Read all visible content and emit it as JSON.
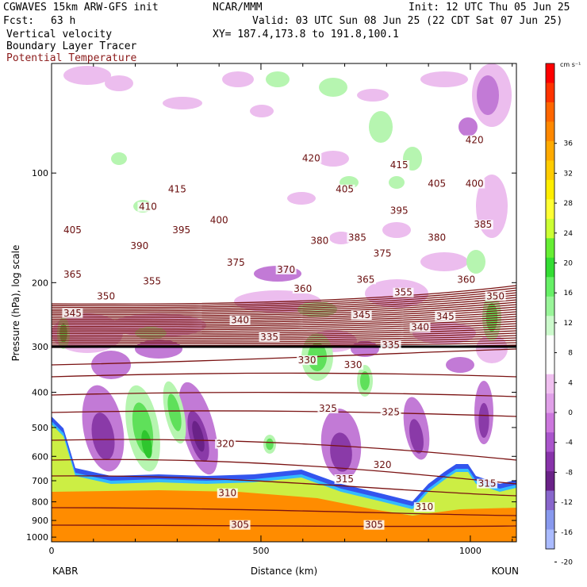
{
  "header": {
    "model": "CGWAVES 15km ARW-GFS init",
    "fcst_label": "Fcst:",
    "fcst_value": "63 h",
    "org": "NCAR/MMM",
    "init": "Init: 12 UTC Thu 05 Jun 25",
    "valid": "Valid: 03 UTC Sun 08 Jun 25 (22 CDT Sat 07 Jun 25)",
    "xy": "XY= 187.4,173.8 to 191.8,100.1",
    "field1": "Vertical velocity",
    "field2": "Boundary Layer Tracer",
    "field3": "Potential Temperature"
  },
  "chart_data": {
    "type": "heatmap",
    "title": "Vertical velocity / Boundary Layer Tracer / Potential Temperature cross-section",
    "xlabel": "Distance (km)",
    "ylabel": "Pressure (hPa), log scale",
    "x_ticks": [
      "0",
      "500",
      "1000"
    ],
    "x_tick_values": [
      0,
      500,
      1000
    ],
    "xlim": [
      0,
      1110
    ],
    "y_ticks": [
      "100",
      "200",
      "300",
      "400",
      "500",
      "600",
      "700",
      "800",
      "900",
      "1000"
    ],
    "y_tick_values": [
      100,
      200,
      300,
      400,
      500,
      600,
      700,
      800,
      900,
      1000
    ],
    "ylim": [
      1030,
      50
    ],
    "y_scale": "log",
    "endpoints": {
      "left": "KABR",
      "right": "KOUN"
    },
    "colorbar": {
      "unit": "cm s⁻¹",
      "labels": [
        "36",
        "32",
        "28",
        "24",
        "20",
        "16",
        "12",
        "8",
        "4",
        "0",
        "-4",
        "-8",
        "-12",
        "-16",
        "-20"
      ],
      "values": [
        36,
        32,
        28,
        24,
        20,
        16,
        12,
        8,
        4,
        0,
        -4,
        -8,
        -12,
        -16,
        -20
      ],
      "colors": [
        "#ff0000",
        "#ff3300",
        "#ff6600",
        "#ff8800",
        "#ffaa00",
        "#ffcc00",
        "#ffee00",
        "#ffff33",
        "#ccff33",
        "#66ee33",
        "#33dd33",
        "#66f066",
        "#99f599",
        "#ccfacc",
        "#ffffff",
        "#ffffff",
        "#f0c0f0",
        "#e0a0e8",
        "#cc77dd",
        "#aa55cc",
        "#8833aa",
        "#6a2288",
        "#8866cc",
        "#8899ee",
        "#aabbff"
      ]
    },
    "theta_labels": [
      {
        "x": 50,
        "p": 145,
        "t": "405"
      },
      {
        "x": 230,
        "p": 125,
        "t": "410"
      },
      {
        "x": 300,
        "p": 112,
        "t": "415"
      },
      {
        "x": 620,
        "p": 92,
        "t": "420"
      },
      {
        "x": 830,
        "p": 96,
        "t": "415"
      },
      {
        "x": 1010,
        "p": 82,
        "t": "420"
      },
      {
        "x": 920,
        "p": 108,
        "t": "405"
      },
      {
        "x": 1010,
        "p": 108,
        "t": "400"
      },
      {
        "x": 700,
        "p": 112,
        "t": "405"
      },
      {
        "x": 830,
        "p": 128,
        "t": "395"
      },
      {
        "x": 1030,
        "p": 140,
        "t": "385"
      },
      {
        "x": 400,
        "p": 136,
        "t": "400"
      },
      {
        "x": 310,
        "p": 145,
        "t": "395"
      },
      {
        "x": 210,
        "p": 160,
        "t": "390"
      },
      {
        "x": 640,
        "p": 155,
        "t": "380"
      },
      {
        "x": 730,
        "p": 152,
        "t": "385"
      },
      {
        "x": 790,
        "p": 168,
        "t": "375"
      },
      {
        "x": 920,
        "p": 152,
        "t": "380"
      },
      {
        "x": 440,
        "p": 178,
        "t": "375"
      },
      {
        "x": 560,
        "p": 186,
        "t": "370"
      },
      {
        "x": 50,
        "p": 192,
        "t": "365"
      },
      {
        "x": 600,
        "p": 210,
        "t": "360"
      },
      {
        "x": 750,
        "p": 198,
        "t": "365"
      },
      {
        "x": 990,
        "p": 198,
        "t": "360"
      },
      {
        "x": 130,
        "p": 220,
        "t": "350"
      },
      {
        "x": 240,
        "p": 200,
        "t": "355"
      },
      {
        "x": 840,
        "p": 215,
        "t": "355"
      },
      {
        "x": 1060,
        "p": 220,
        "t": "350"
      },
      {
        "x": 50,
        "p": 245,
        "t": "345"
      },
      {
        "x": 740,
        "p": 248,
        "t": "345"
      },
      {
        "x": 940,
        "p": 250,
        "t": "345"
      },
      {
        "x": 450,
        "p": 256,
        "t": "340"
      },
      {
        "x": 880,
        "p": 268,
        "t": "340"
      },
      {
        "x": 520,
        "p": 285,
        "t": "335"
      },
      {
        "x": 810,
        "p": 300,
        "t": "335"
      },
      {
        "x": 610,
        "p": 330,
        "t": "330"
      },
      {
        "x": 720,
        "p": 340,
        "t": "330"
      },
      {
        "x": 660,
        "p": 448,
        "t": "325"
      },
      {
        "x": 810,
        "p": 458,
        "t": "325"
      },
      {
        "x": 415,
        "p": 560,
        "t": "320"
      },
      {
        "x": 790,
        "p": 640,
        "t": "320"
      },
      {
        "x": 700,
        "p": 700,
        "t": "315"
      },
      {
        "x": 1040,
        "p": 720,
        "t": "315"
      },
      {
        "x": 420,
        "p": 765,
        "t": "310"
      },
      {
        "x": 890,
        "p": 835,
        "t": "310"
      },
      {
        "x": 450,
        "p": 935,
        "t": "305"
      },
      {
        "x": 770,
        "p": 935,
        "t": "305"
      }
    ]
  }
}
